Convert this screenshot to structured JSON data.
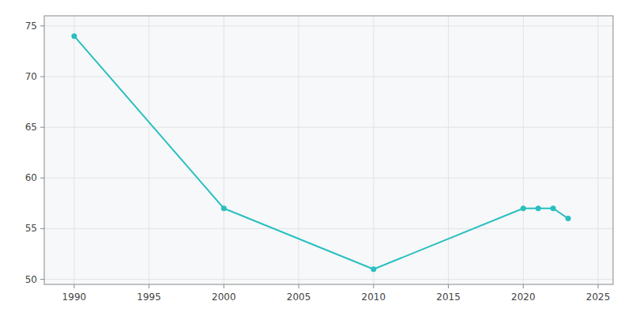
{
  "chart_data": {
    "type": "line",
    "x": [
      1990,
      2000,
      2010,
      2020,
      2021,
      2022,
      2023
    ],
    "values": [
      74,
      57,
      51,
      57,
      57,
      57,
      56
    ],
    "color": "#29BFBF",
    "marker": "circle",
    "grid": true,
    "xlim": [
      1988,
      2026
    ],
    "ylim": [
      49.5,
      76
    ],
    "xticks": [
      1990,
      1995,
      2000,
      2005,
      2010,
      2015,
      2020,
      2025
    ],
    "yticks": [
      50,
      55,
      60,
      65,
      70,
      75
    ]
  }
}
